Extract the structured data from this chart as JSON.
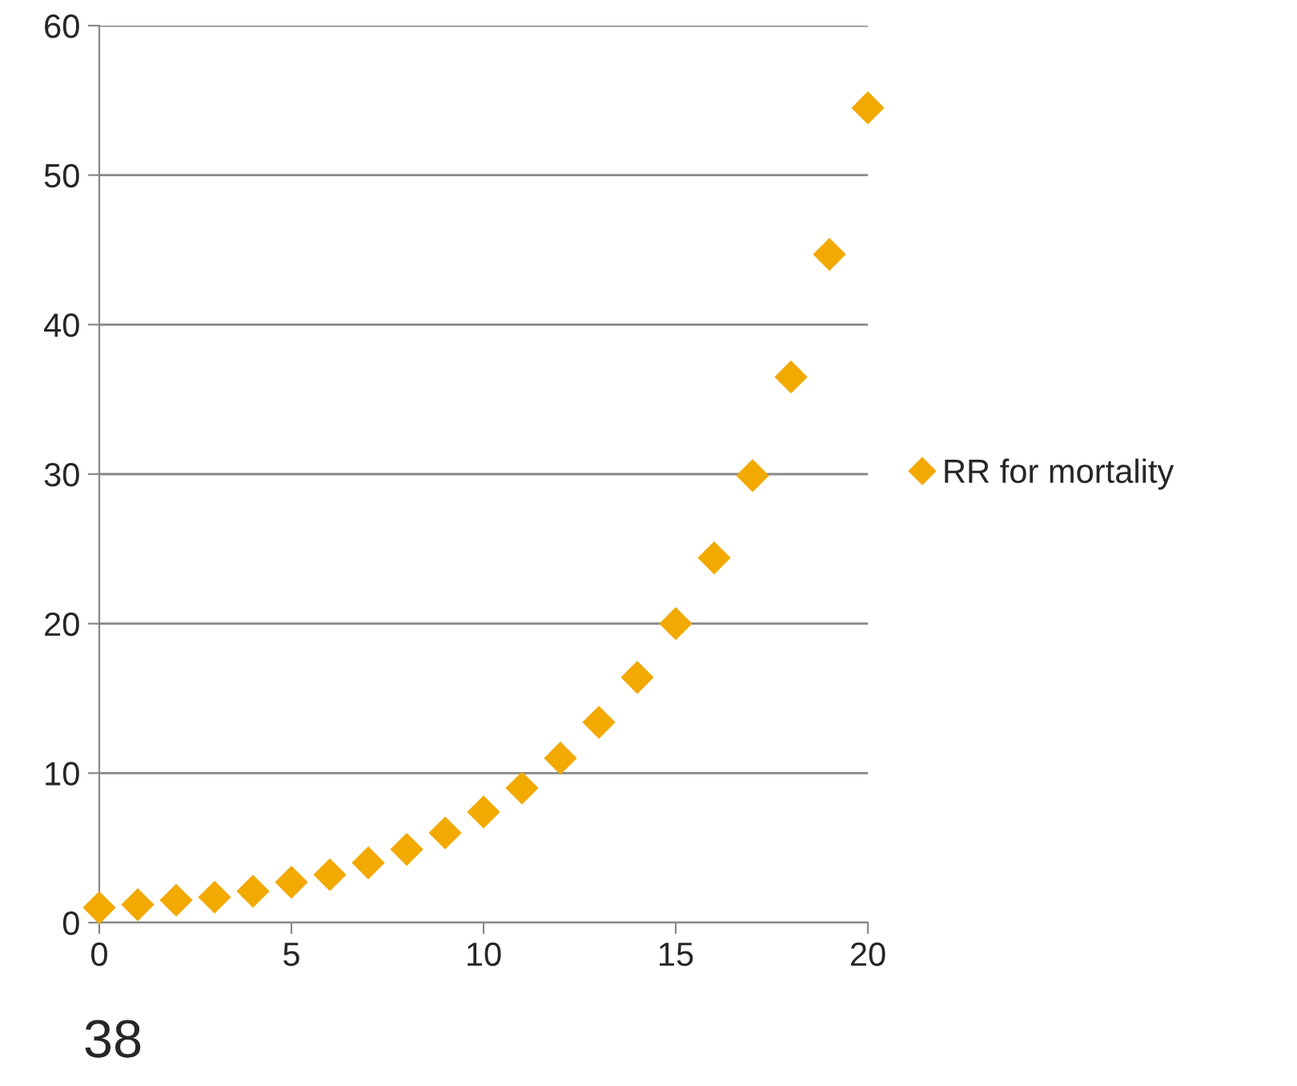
{
  "chart_data": {
    "type": "scatter",
    "x": [
      0,
      1,
      2,
      3,
      4,
      5,
      6,
      7,
      8,
      9,
      10,
      11,
      12,
      13,
      14,
      15,
      16,
      17,
      18,
      19,
      20
    ],
    "series": [
      {
        "name": "RR for mortality",
        "color": "#f2a900",
        "values": [
          1.0,
          1.2,
          1.5,
          1.7,
          2.1,
          2.7,
          3.2,
          4.0,
          4.9,
          6.0,
          7.4,
          9.0,
          11.0,
          13.4,
          16.4,
          20.0,
          24.4,
          29.9,
          36.5,
          44.7,
          54.5
        ]
      }
    ],
    "xlim": [
      0,
      20
    ],
    "xticks": [
      0,
      5,
      10,
      15,
      20
    ],
    "ylim": [
      0,
      60
    ],
    "yticks": [
      0,
      10,
      20,
      30,
      40,
      50,
      60
    ],
    "grid": "y",
    "legend": "right",
    "marker": "diamond",
    "annotations": [
      "38"
    ]
  }
}
